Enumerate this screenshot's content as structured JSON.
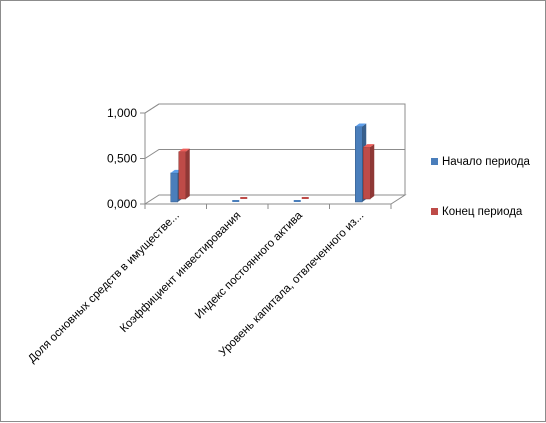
{
  "chart_data": {
    "type": "bar",
    "categories": [
      "Доля основных средств в имуществе...",
      "Коэффициент инвестирования",
      "Индекс постоянного актива",
      "Уровень капитала, отвлеченного из..."
    ],
    "series": [
      {
        "name": "Начало периода",
        "values": [
          0.32,
          0.0,
          0.0,
          0.83
        ],
        "color": "#4a7ebb"
      },
      {
        "name": "Конец периода",
        "values": [
          0.52,
          0.0,
          0.0,
          0.57
        ],
        "color": "#be4b48"
      }
    ],
    "yticks": [
      "0,000",
      "0,500",
      "1,000"
    ],
    "ylim": [
      0,
      1
    ],
    "grid": true,
    "legend_position": "right"
  }
}
